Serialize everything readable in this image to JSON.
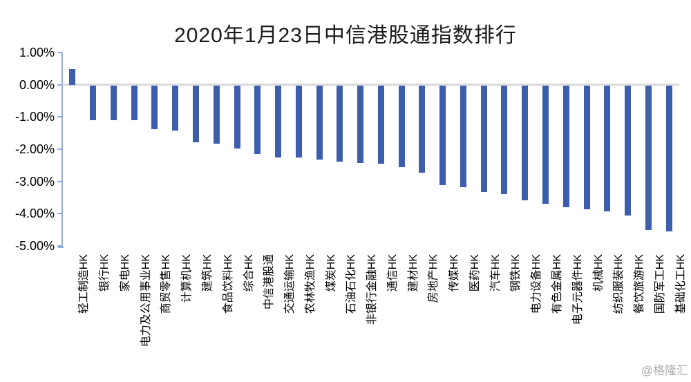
{
  "watermark": "@格隆汇",
  "chart_data": {
    "type": "bar",
    "title": "2020年1月23日中信港股通指数排行",
    "categories": [
      "轻工制造HK",
      "银行HK",
      "家电HK",
      "电力及公用事业HK",
      "商贸零售HK",
      "计算机HK",
      "建筑HK",
      "食品饮料HK",
      "综合HK",
      "中信港股通",
      "交通运输HK",
      "农林牧渔HK",
      "煤炭HK",
      "石油石化HK",
      "非银行金融HK",
      "通信HK",
      "建材HK",
      "房地产HK",
      "传媒HK",
      "医药HK",
      "汽车HK",
      "钢铁HK",
      "电力设备HK",
      "有色金属HK",
      "电子元器件HK",
      "机械HK",
      "纺织服装HK",
      "餐饮旅游HK",
      "国防军工HK",
      "基础化工HK"
    ],
    "values": [
      0.49,
      -1.1,
      -1.11,
      -1.11,
      -1.38,
      -1.42,
      -1.79,
      -1.82,
      -1.97,
      -2.16,
      -2.26,
      -2.26,
      -2.32,
      -2.38,
      -2.43,
      -2.44,
      -2.55,
      -2.73,
      -3.11,
      -3.18,
      -3.33,
      -3.39,
      -3.58,
      -3.7,
      -3.8,
      -3.87,
      -3.92,
      -4.05,
      -4.5,
      -4.55
    ],
    "value_unit": "%",
    "xlabel": "",
    "ylabel": "",
    "ylim": [
      -5,
      1
    ],
    "ytick_labels": [
      "1.00%",
      "0.00%",
      "-1.00%",
      "-2.00%",
      "-3.00%",
      "-4.00%",
      "-5.00%"
    ],
    "ytick_values": [
      1,
      0,
      -1,
      -2,
      -3,
      -4,
      -5
    ],
    "grid": "zero-line-only",
    "legend": "none",
    "colors": {
      "bar": "#3C5EAD",
      "axis": "#8FAADC",
      "zero_line": "#D9D9D9",
      "text": "#000000",
      "watermark": "#ABABAB"
    }
  }
}
